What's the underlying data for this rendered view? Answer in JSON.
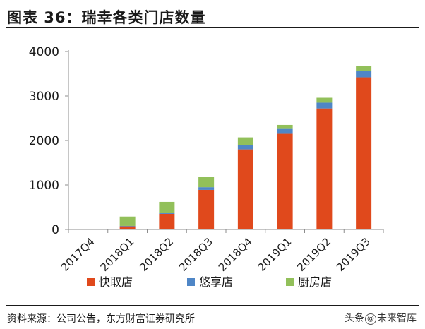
{
  "header": {
    "title": "图表 36：瑞幸各类门店数量"
  },
  "footer": {
    "source": "资料来源：公司公告，东方财富证券研究所",
    "watermark_prefix": "头条",
    "watermark_suffix": "未来智库"
  },
  "chart_data": {
    "type": "bar",
    "stacked": true,
    "categories": [
      "2017Q4",
      "2018Q1",
      "2018Q2",
      "2018Q3",
      "2018Q4",
      "2019Q1",
      "2019Q2",
      "2019Q3"
    ],
    "series": [
      {
        "name": "快取店",
        "color": "#e0491c",
        "values": [
          0,
          70,
          350,
          890,
          1800,
          2150,
          2720,
          3420
        ]
      },
      {
        "name": "悠享店",
        "color": "#4f86c6",
        "values": [
          0,
          10,
          30,
          60,
          90,
          110,
          130,
          140
        ]
      },
      {
        "name": "厨房店",
        "color": "#92c05a",
        "values": [
          0,
          210,
          240,
          230,
          180,
          90,
          110,
          120
        ]
      }
    ],
    "yticks": [
      0,
      1000,
      2000,
      3000,
      4000
    ],
    "ylim": [
      0,
      4000
    ],
    "grid": false,
    "legend_position": "bottom"
  }
}
